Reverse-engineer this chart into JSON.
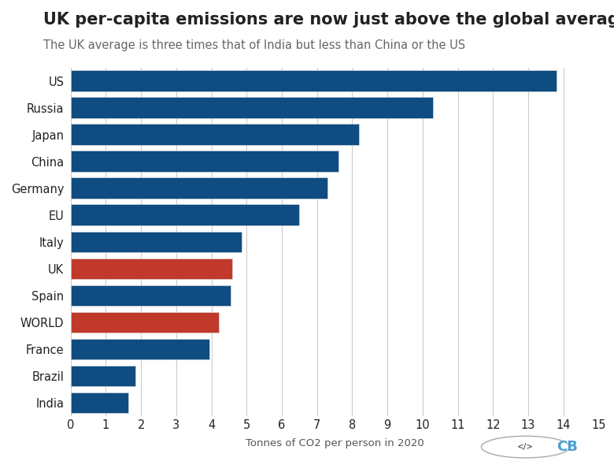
{
  "title": "UK per-capita emissions are now just above the global average",
  "subtitle": "The UK average is three times that of India but less than China or the US",
  "xlabel": "Tonnes of CO2 per person in 2020",
  "categories": [
    "US",
    "Russia",
    "Japan",
    "China",
    "Germany",
    "EU",
    "Italy",
    "UK",
    "Spain",
    "WORLD",
    "France",
    "Brazil",
    "India"
  ],
  "values": [
    13.8,
    10.3,
    8.2,
    7.6,
    7.3,
    6.5,
    4.85,
    4.6,
    4.55,
    4.2,
    3.95,
    1.85,
    1.65
  ],
  "bar_colors": [
    "#0f4c81",
    "#0f4c81",
    "#0f4c81",
    "#0f4c81",
    "#0f4c81",
    "#0f4c81",
    "#0f4c81",
    "#c0392b",
    "#0f4c81",
    "#c0392b",
    "#0f4c81",
    "#0f4c81",
    "#0f4c81"
  ],
  "xlim": [
    0,
    15
  ],
  "xticks": [
    0,
    1,
    2,
    3,
    4,
    5,
    6,
    7,
    8,
    9,
    10,
    11,
    12,
    13,
    14,
    15
  ],
  "background_color": "#ffffff",
  "plot_bg_color": "#ffffff",
  "grid_color": "#cccccc",
  "title_fontsize": 15,
  "subtitle_fontsize": 10.5,
  "bar_height": 0.78,
  "text_color": "#222222",
  "axis_label_color": "#555555",
  "tick_label_fontsize": 10.5,
  "xlabel_fontsize": 9.5
}
